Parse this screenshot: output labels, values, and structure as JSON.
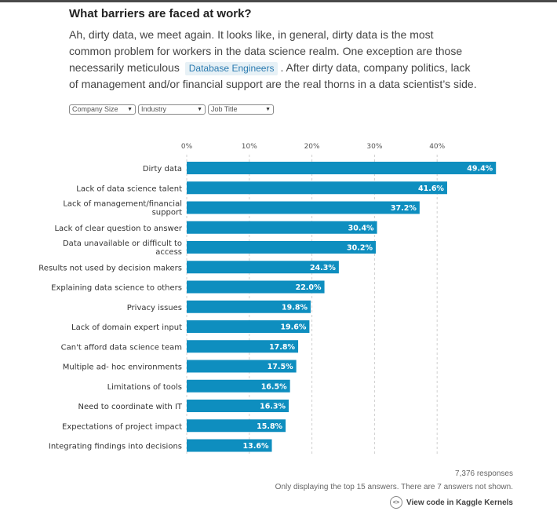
{
  "header": {
    "title": "What barriers are faced at work?",
    "intro_1": "Ah, dirty data, we meet again. It looks like, in general, dirty data is the most common problem for workers in the data science realm. One exception are those necessarily meticulous",
    "intro_tag": "Database Engineers",
    "intro_2": ". After dirty data, company politics, lack of management and/or financial support are the real thorns in a data scientist’s side."
  },
  "filters": [
    {
      "label": "Company Size",
      "arrow": "▼"
    },
    {
      "label": "Industry",
      "arrow": "▼"
    },
    {
      "label": "Job Title",
      "arrow": "▼"
    }
  ],
  "chart_data": {
    "type": "bar",
    "orientation": "horizontal",
    "xlim": [
      0,
      50
    ],
    "ticks": [
      0,
      10,
      20,
      30,
      40
    ],
    "tick_labels": [
      "0%",
      "10%",
      "20%",
      "30%",
      "40%"
    ],
    "grid": true,
    "bar_color": "#0e8ebf",
    "categories": [
      [
        "Dirty data"
      ],
      [
        "Lack of data science talent"
      ],
      [
        "Lack of management/financial",
        "support"
      ],
      [
        "Lack of clear question to answer"
      ],
      [
        "Data unavailable or difficult to",
        "access"
      ],
      [
        "Results not used by decision makers"
      ],
      [
        "Explaining data science to others"
      ],
      [
        "Privacy issues"
      ],
      [
        "Lack of domain expert input"
      ],
      [
        "Can't afford data science team"
      ],
      [
        "Multiple ad- hoc environments"
      ],
      [
        "Limitations of tools"
      ],
      [
        "Need to coordinate with IT"
      ],
      [
        "Expectations of project impact"
      ],
      [
        "Integrating findings into decisions"
      ]
    ],
    "values": [
      49.4,
      41.6,
      37.2,
      30.4,
      30.2,
      24.3,
      22.0,
      19.8,
      19.6,
      17.8,
      17.5,
      16.5,
      16.3,
      15.8,
      13.6
    ],
    "value_labels": [
      "49.4%",
      "41.6%",
      "37.2%",
      "30.4%",
      "30.2%",
      "24.3%",
      "22.0%",
      "19.8%",
      "19.6%",
      "17.8%",
      "17.5%",
      "16.5%",
      "16.3%",
      "15.8%",
      "13.6%"
    ]
  },
  "footer": {
    "responses": "7,376 responses",
    "note": "Only displaying the top 15 answers. There are 7 answers not shown.",
    "code_icon": "code-icon",
    "view_code": "View code in Kaggle Kernels"
  }
}
